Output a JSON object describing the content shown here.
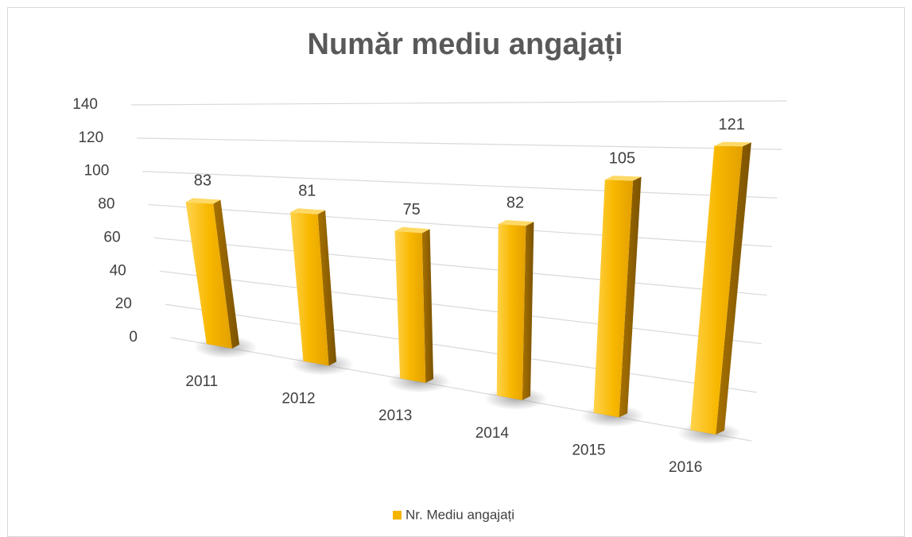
{
  "chart_data": {
    "type": "bar3d",
    "title": "Număr mediu angajați",
    "categories": [
      "2011",
      "2012",
      "2013",
      "2014",
      "2015",
      "2016"
    ],
    "series": [
      {
        "name": "Nr. Mediu angajați",
        "color": "#f5b400",
        "values": [
          83,
          81,
          75,
          82,
          105,
          121
        ]
      }
    ],
    "ylim": [
      0,
      140
    ],
    "yticks": [
      0,
      20,
      40,
      60,
      80,
      100,
      120,
      140
    ],
    "grid": true,
    "legend": "bottom"
  }
}
